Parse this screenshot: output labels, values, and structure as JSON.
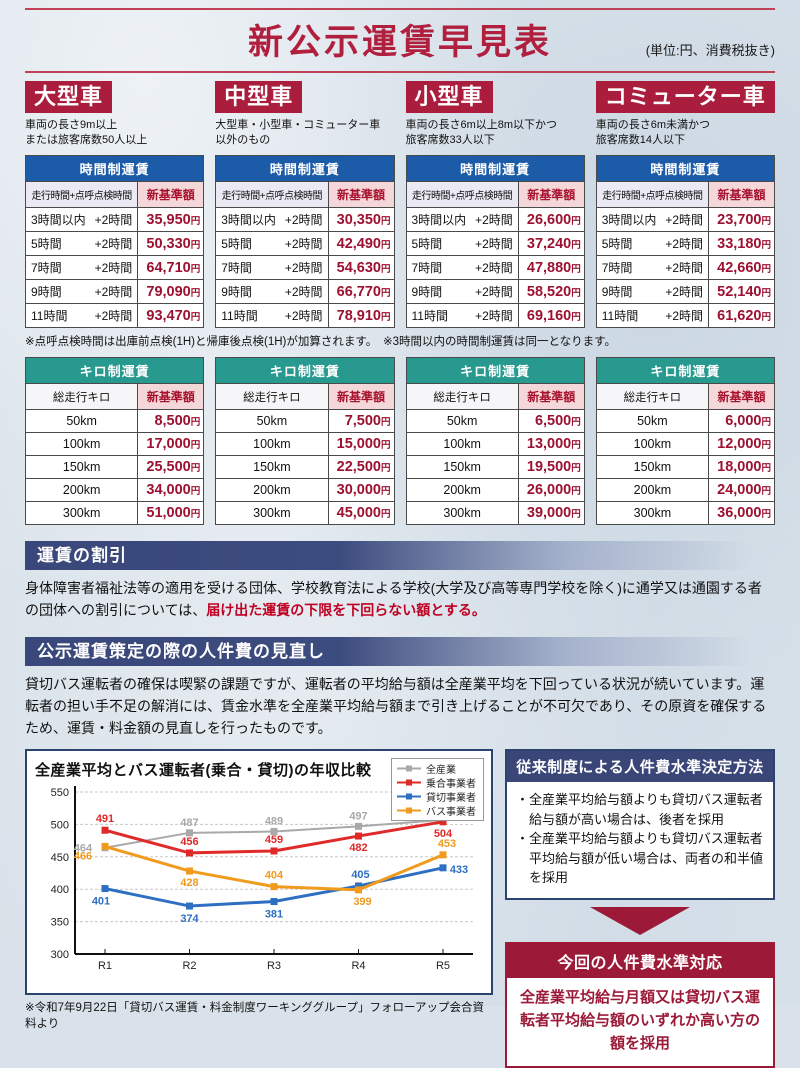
{
  "page": {
    "title": "新公示運賃早見表",
    "unit_note": "(単位:円、消費税抜き)"
  },
  "colors": {
    "crimson_badge": "#ab1d3c",
    "time_header_blue": "#1c5ba8",
    "km_header_teal": "#27998f",
    "new_base_pink": "#f4d8d9",
    "price_red": "#9c1130",
    "banner_navy": "#39477a",
    "box_navy": "#3a4677",
    "box_dark_red": "#9c1a38",
    "highlight_red": "#c00022"
  },
  "shared": {
    "time_table_title": "時間制運賃",
    "time_col_left": "走行時間+点呼点検時間",
    "new_base_col": "新基準額",
    "km_table_title": "キロ制運賃",
    "km_col_left": "総走行キロ",
    "yen": "円",
    "time_row_labels": [
      [
        "3時間以内",
        "+2時間"
      ],
      [
        "5時間",
        "+2時間"
      ],
      [
        "7時間",
        "+2時間"
      ],
      [
        "9時間",
        "+2時間"
      ],
      [
        "11時間",
        "+2時間"
      ]
    ],
    "km_row_labels": [
      "50km",
      "100km",
      "150km",
      "200km",
      "300km"
    ]
  },
  "categories": [
    {
      "name": "大型車",
      "desc": "車両の長さ9m以上\nまたは旅客席数50人以上",
      "time_values": [
        "35,950",
        "50,330",
        "64,710",
        "79,090",
        "93,470"
      ],
      "km_values": [
        "8,500",
        "17,000",
        "25,500",
        "34,000",
        "51,000"
      ]
    },
    {
      "name": "中型車",
      "desc": "大型車・小型車・コミューター車\n以外のもの",
      "time_values": [
        "30,350",
        "42,490",
        "54,630",
        "66,770",
        "78,910"
      ],
      "km_values": [
        "7,500",
        "15,000",
        "22,500",
        "30,000",
        "45,000"
      ]
    },
    {
      "name": "小型車",
      "desc": "車両の長さ6m以上8m以下かつ\n旅客席数33人以下",
      "time_values": [
        "26,600",
        "37,240",
        "47,880",
        "58,520",
        "69,160"
      ],
      "km_values": [
        "6,500",
        "13,000",
        "19,500",
        "26,000",
        "39,000"
      ]
    },
    {
      "name": "コミューター車",
      "desc": "車両の長さ6m未満かつ\n旅客席数14人以下",
      "time_values": [
        "23,700",
        "33,180",
        "42,660",
        "52,140",
        "61,620"
      ],
      "km_values": [
        "6,000",
        "12,000",
        "18,000",
        "24,000",
        "36,000"
      ]
    }
  ],
  "notes": {
    "time_note": "※点呼点検時間は出庫前点検(1H)と帰庫後点検(1H)が加算されます。　※3時間以内の時間制運賃は同一となります。",
    "source_note": "※令和7年9月22日「貸切バス運賃・料金制度ワーキンググループ」フォローアップ会合資料より"
  },
  "sections": {
    "discount": {
      "heading": "運賃の割引",
      "text_plain": "身体障害者福祉法等の適用を受ける団体、学校教育法による学校(大学及び高等専門学校を除く)に通学又は通園する者の団体への割引については、",
      "text_red": "届け出た運賃の下限を下回らない額とする。"
    },
    "personnel": {
      "heading": "公示運賃策定の際の人件費の見直し",
      "text": "貸切バス運転者の確保は喫緊の課題ですが、運転者の平均給与額は全産業平均を下回っている状況が続いています。運転者の担い手不足の解消には、賃金水準を全産業平均給与額まで引き上げることが不可欠であり、その原資を確保するため、運賃・料金額の見直しを行ったものです。"
    }
  },
  "chart_data": {
    "type": "line",
    "title": "全産業平均とバス運転者(乗合・貸切)の年収比較",
    "x": [
      "R1",
      "R2",
      "R3",
      "R4",
      "R5"
    ],
    "ylim": [
      300,
      550
    ],
    "yticks": [
      300,
      350,
      400,
      450,
      500,
      550
    ],
    "grid": true,
    "legend_position": "top-right",
    "series": [
      {
        "name": "全産業",
        "color": "#a9a9a9",
        "values": [
          464,
          487,
          489,
          497,
          507
        ]
      },
      {
        "name": "乗合事業者",
        "color": "#e02a2a",
        "values": [
          491,
          456,
          459,
          482,
          504
        ]
      },
      {
        "name": "貸切事業者",
        "color": "#2e6fc2",
        "values": [
          401,
          374,
          381,
          405,
          433
        ]
      },
      {
        "name": "バス事業者",
        "color": "#f09b1d",
        "values": [
          466,
          428,
          404,
          399,
          453
        ]
      }
    ]
  },
  "right_panel": {
    "legacy_box": {
      "heading": "従来制度による人件費水準決定方法",
      "bullets": [
        "・全産業平均給与額よりも貸切バス運転者給与額が高い場合は、後者を採用",
        "・全産業平均給与額よりも貸切バス運転者平均給与額が低い場合は、両者の和半値を採用"
      ]
    },
    "current_box": {
      "heading": "今回の人件費水準対応",
      "text": "全産業平均給与月額又は貸切バス運転者平均給与額のいずれか高い方の額を採用"
    }
  }
}
